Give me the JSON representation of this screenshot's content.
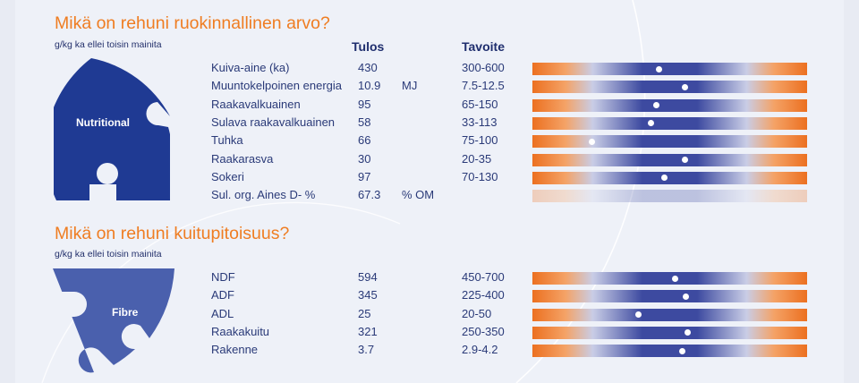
{
  "section1": {
    "title": "Mikä on rehuni ruokinnallinen arvo?",
    "note": "g/kg ka ellei toisin mainita",
    "col_result": "Tulos",
    "col_target": "Tavoite",
    "puzzle_label": "Nutritional",
    "rows": [
      {
        "name": "Kuiva-aine (ka)",
        "value": "430",
        "unit": "",
        "target": "300-600",
        "marker": 0.46
      },
      {
        "name": "Muuntokelpoinen energia",
        "value": "10.9",
        "unit": "MJ",
        "target": "7.5-12.5",
        "marker": 0.555
      },
      {
        "name": "Raakavalkuainen",
        "value": "95",
        "unit": "",
        "target": "65-150",
        "marker": 0.45
      },
      {
        "name": "Sulava raakavalkuainen",
        "value": "58",
        "unit": "",
        "target": "33-113",
        "marker": 0.43
      },
      {
        "name": "Tuhka",
        "value": "66",
        "unit": "",
        "target": "75-100",
        "marker": 0.215
      },
      {
        "name": "Raakarasva",
        "value": "30",
        "unit": "",
        "target": "20-35",
        "marker": 0.555
      },
      {
        "name": "Sokeri",
        "value": "97",
        "unit": "",
        "target": "70-130",
        "marker": 0.48
      },
      {
        "name": "Sul. org. Aines D- %",
        "value": "67.3",
        "unit": "% OM",
        "target": "",
        "marker": null
      }
    ]
  },
  "section2": {
    "title": "Mikä on rehuni kuitupitoisuus?",
    "note": "g/kg ka ellei toisin mainita",
    "puzzle_label": "Fibre",
    "rows": [
      {
        "name": "NDF",
        "value": "594",
        "target": "450-700",
        "marker": 0.52
      },
      {
        "name": "ADF",
        "value": "345",
        "target": "225-400",
        "marker": 0.56
      },
      {
        "name": "ADL",
        "value": "25",
        "target": "20-50",
        "marker": 0.385
      },
      {
        "name": "Raakakuitu",
        "value": "321",
        "target": "250-350",
        "marker": 0.565
      },
      {
        "name": "Rakenne",
        "value": "3.7",
        "target": "2.9-4.2",
        "marker": 0.545
      }
    ]
  },
  "colors": {
    "orange": "#ef7d22",
    "navy": "#1f3a93",
    "fibre_blue": "#4a60ad",
    "bar_blue": "#3d4aa0"
  }
}
